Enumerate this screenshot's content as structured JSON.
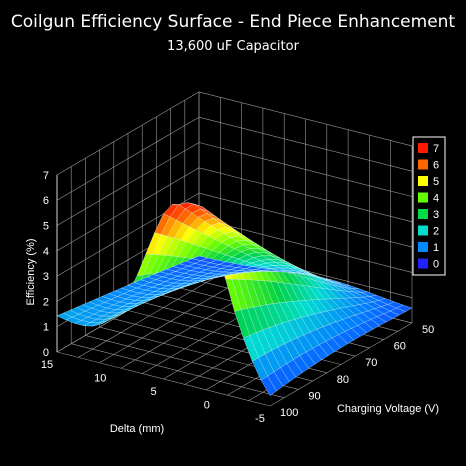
{
  "chart_data": {
    "type": "surface3d",
    "title": "Coilgun Efficiency Surface - End Piece Enhancement",
    "subtitle": "13,600 uF Capacitor",
    "zlabel": "Efficiency (%)",
    "xlabel": "Delta (mm)",
    "ylabel": "Charging Voltage (V)",
    "delta_values": [
      15,
      10,
      5,
      0,
      -5
    ],
    "voltage_values": [
      50,
      60,
      70,
      80,
      90,
      100
    ],
    "efficiency_ticks": [
      0,
      1,
      2,
      3,
      4,
      5,
      6,
      7
    ],
    "zlim": [
      0,
      7
    ],
    "grid": true,
    "legend_position": "right",
    "legend": [
      {
        "label": "7",
        "color": "#ff1a00"
      },
      {
        "label": "6",
        "color": "#ff6600"
      },
      {
        "label": "5",
        "color": "#ffff00"
      },
      {
        "label": "4",
        "color": "#66ff00"
      },
      {
        "label": "3",
        "color": "#00dd44"
      },
      {
        "label": "2",
        "color": "#00ddcc"
      },
      {
        "label": "1",
        "color": "#0088ff"
      },
      {
        "label": "0",
        "color": "#2222ff"
      }
    ],
    "surface": {
      "peak_efficiency": 7.0,
      "peak_delta": 3,
      "peak_voltage": 100,
      "min_efficiency": 0.0,
      "note_shape": "ridge rising with voltage, peaking near delta 3 mm"
    }
  }
}
